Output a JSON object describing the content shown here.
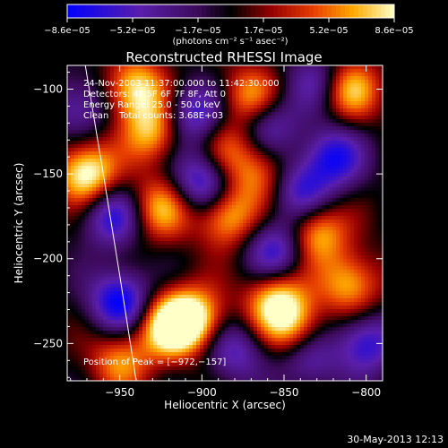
{
  "chart_data": {
    "type": "heatmap",
    "title": "Reconstructed RHESSI Image",
    "xlabel": "Heliocentric X (arcsec)",
    "ylabel": "Heliocentric Y (arcsec)",
    "xlim": [
      -982,
      -790
    ],
    "ylim": [
      -272,
      -86
    ],
    "x_ticks": [
      -950,
      -900,
      -850,
      -800
    ],
    "x_tick_labels": [
      "−950",
      "−900",
      "−850",
      "−800"
    ],
    "y_ticks": [
      -100,
      -150,
      -200,
      -250
    ],
    "y_tick_labels": [
      "−100",
      "−150",
      "−200",
      "−250"
    ],
    "colorbar": {
      "min": -8.6e-05,
      "max": 8.6e-05,
      "tick_labels": [
        "−8.6e−05",
        "−5.2e−05",
        "−1.7e−05",
        "1.7e−05",
        "5.2e−05",
        "8.6e−05"
      ],
      "unit_label": "(photons cm⁻² s⁻¹ asec⁻²)",
      "colors": [
        "#0000ff",
        "#7a24a8",
        "#000000",
        "#c81400",
        "#ff7a00",
        "#ffffc8"
      ]
    },
    "annotations": {
      "time": "24-Nov-2003 11:37:00.000 to 11:42:30.000",
      "detectors": "Detectors: 4F 5F 6F 7F 8F, Att 0",
      "energy": "Energy Range: 25.0 - 50.0 keV",
      "method": "Clean",
      "counts": "Total counts: 3.68E+03",
      "peak": "Position of Peak = [−972,−157]"
    },
    "peak": {
      "x": -972,
      "y": -157
    },
    "limb": [
      [
        -971,
        -86
      ],
      [
        -960,
        -150
      ],
      [
        -950,
        -210
      ],
      [
        -940,
        -272
      ]
    ],
    "blobs": [
      {
        "x": -970,
        "y": -150,
        "v": 1.0
      },
      {
        "x": -940,
        "y": -100,
        "v": 0.85
      },
      {
        "x": -930,
        "y": -125,
        "v": 0.7
      },
      {
        "x": -925,
        "y": -170,
        "v": 0.7
      },
      {
        "x": -920,
        "y": -240,
        "v": 0.95
      },
      {
        "x": -905,
        "y": -235,
        "v": 0.85
      },
      {
        "x": -885,
        "y": -175,
        "v": 0.75
      },
      {
        "x": -870,
        "y": -105,
        "v": 0.7
      },
      {
        "x": -865,
        "y": -150,
        "v": 0.55
      },
      {
        "x": -855,
        "y": -225,
        "v": 0.8
      },
      {
        "x": -845,
        "y": -240,
        "v": 0.6
      },
      {
        "x": -830,
        "y": -185,
        "v": 0.75
      },
      {
        "x": -810,
        "y": -100,
        "v": 0.75
      },
      {
        "x": -810,
        "y": -215,
        "v": 0.7
      },
      {
        "x": -950,
        "y": -260,
        "v": 0.6
      },
      {
        "x": -885,
        "y": -135,
        "v": 0.45
      },
      {
        "x": -955,
        "y": -175,
        "v": -0.7
      },
      {
        "x": -950,
        "y": -225,
        "v": -0.9
      },
      {
        "x": -905,
        "y": -115,
        "v": -0.7
      },
      {
        "x": -900,
        "y": -155,
        "v": -0.8
      },
      {
        "x": -860,
        "y": -120,
        "v": -0.6
      },
      {
        "x": -855,
        "y": -195,
        "v": -0.7
      },
      {
        "x": -840,
        "y": -160,
        "v": -0.65
      },
      {
        "x": -820,
        "y": -140,
        "v": -0.75
      },
      {
        "x": -800,
        "y": -250,
        "v": -0.7
      },
      {
        "x": -880,
        "y": -255,
        "v": -0.55
      },
      {
        "x": -975,
        "y": -110,
        "v": -0.5
      },
      {
        "x": -830,
        "y": -95,
        "v": -0.5
      },
      {
        "x": -835,
        "y": -260,
        "v": -0.5
      }
    ]
  },
  "footer": {
    "date": "30-May-2013 12:13"
  }
}
